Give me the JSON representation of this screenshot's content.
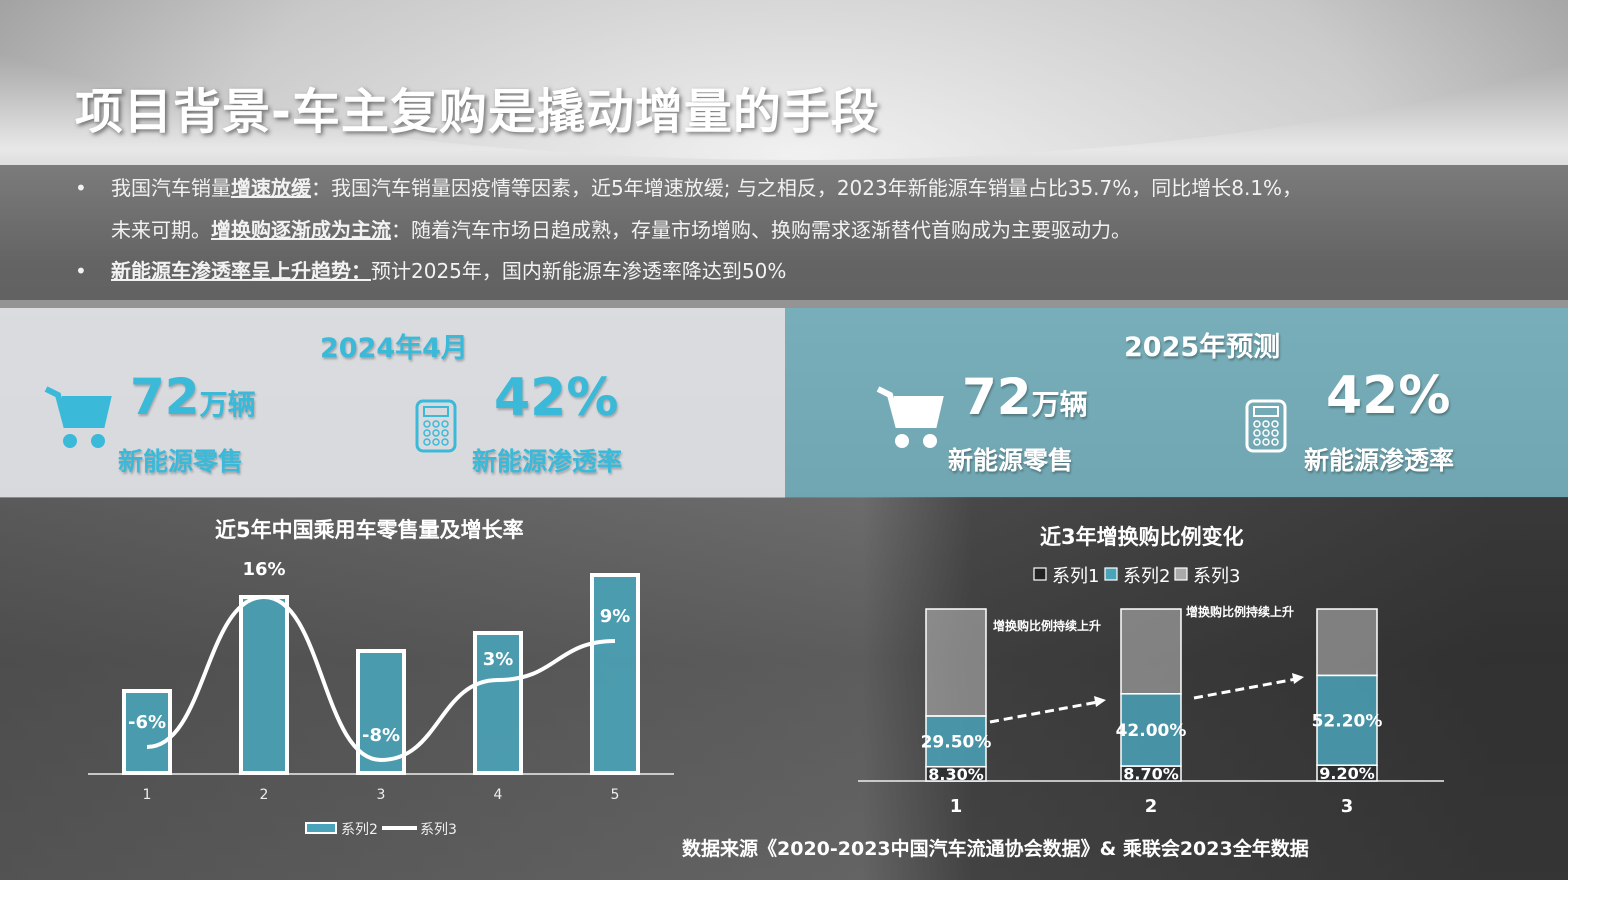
{
  "title": "项目背景-车主复购是撬动增量的手段",
  "bullets": [
    {
      "l1_a": "我国汽车销量",
      "l1_b": "增速放缓",
      "l1_c": "：我国汽车销量因疫情等因素，近5年增速放缓; 与之相反，2023年新能源车销量占比35.7%，同比增长8.1%，",
      "l2_a": "未来可期。",
      "l2_b": "增换购逐渐成为主流",
      "l2_c": "：随着汽车市场日趋成熟，存量市场增购、换购需求逐渐替代首购成为主要驱动力。"
    },
    {
      "a": "新能源车渗透率呈上升趋势：",
      "b": "预计2025年，国内新能源车渗透率降达到50%"
    }
  ],
  "bullet_symbol": "•",
  "panel_left": {
    "heading": "2024年4月",
    "sales_num": "72",
    "sales_unit": "万辆",
    "sales_label": "新能源零售",
    "rate": "42%",
    "rate_label": "新能源渗透率"
  },
  "panel_right": {
    "heading": "2025年预测",
    "sales_num": "72",
    "sales_unit": "万辆",
    "sales_label": "新能源零售",
    "rate": "42%",
    "rate_label": "新能源渗透率"
  },
  "colors": {
    "accent": "#3ab9d9",
    "bar": "#4aa3b8",
    "series1": "#2b2f30",
    "series3": "#bdbdbd"
  },
  "source": "数据来源《2020-2023中国汽车流通协会数据》& 乘联会2023全年数据",
  "chart_data": [
    {
      "type": "bar+line",
      "title": "近5年中国乘用车零售量及增长率",
      "categories": [
        "1",
        "2",
        "3",
        "4",
        "5"
      ],
      "series": [
        {
          "name": "系列2",
          "type": "bar",
          "values": [
            82,
            176,
            122,
            140,
            198
          ]
        },
        {
          "name": "系列3",
          "type": "line",
          "values": [
            -6,
            16,
            -8,
            3,
            9
          ],
          "labels": [
            "-6%",
            "16%",
            "-8%",
            "3%",
            "9%"
          ]
        }
      ],
      "legend": "bottom",
      "grid": false
    },
    {
      "type": "stacked-bar",
      "title": "近3年增换购比例变化",
      "categories": [
        "1",
        "2",
        "3"
      ],
      "series": [
        {
          "name": "系列1",
          "values": [
            8.3,
            8.7,
            9.2
          ],
          "labels": [
            "8.30%",
            "8.70%",
            "9.20%"
          ]
        },
        {
          "name": "系列2",
          "values": [
            29.5,
            42.0,
            52.2
          ],
          "labels": [
            "29.50%",
            "42.00%",
            "52.20%"
          ]
        },
        {
          "name": "系列3",
          "values": [
            62.2,
            49.3,
            38.6
          ]
        }
      ],
      "annotations": [
        "增换购比例持续上升",
        "增换购比例持续上升"
      ],
      "legend": "top",
      "grid": false
    }
  ]
}
